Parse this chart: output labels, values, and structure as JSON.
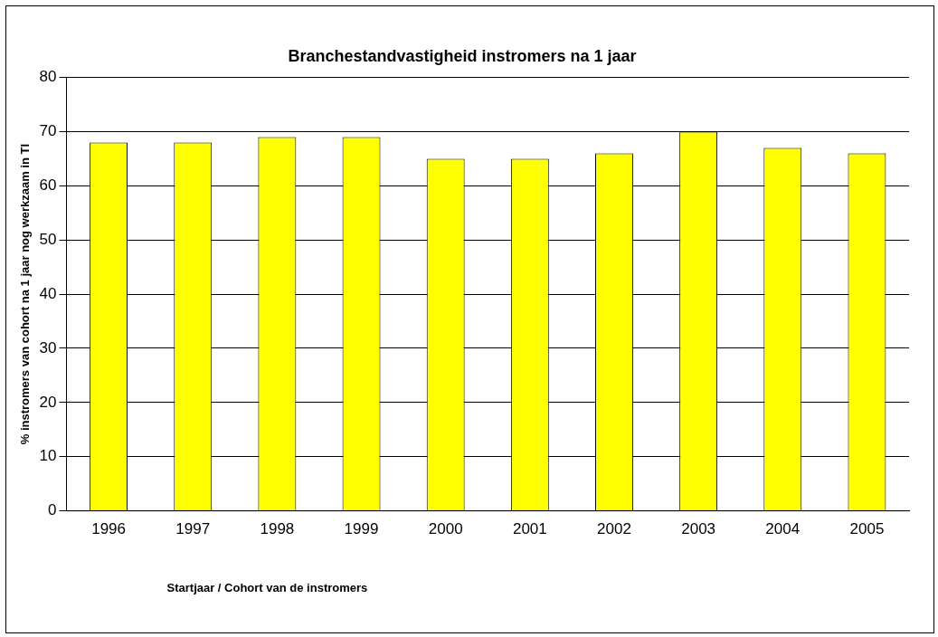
{
  "chart_data": {
    "type": "bar",
    "title": "Branchestandvastigheid instromers na 1 jaar",
    "xlabel": "Startjaar / Cohort van de instromers",
    "ylabel": "% instromers van cohort na 1 jaar nog werkzaam in TI",
    "categories": [
      "1996",
      "1997",
      "1998",
      "1999",
      "2000",
      "2001",
      "2002",
      "2003",
      "2004",
      "2005"
    ],
    "values": [
      68,
      68,
      69,
      69,
      65,
      65,
      66,
      70,
      67,
      66
    ],
    "color": "#ffff00",
    "ylim": [
      0,
      80
    ],
    "yticks": [
      0,
      10,
      20,
      30,
      40,
      50,
      60,
      70,
      80
    ],
    "grid": "y",
    "legend": false
  }
}
